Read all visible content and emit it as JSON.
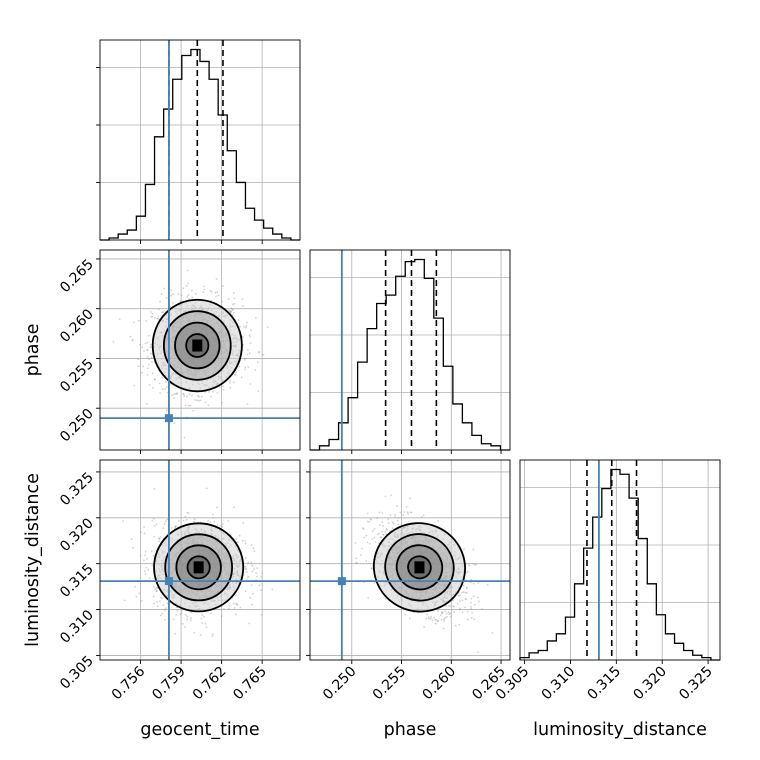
{
  "chart_data": {
    "type": "corner",
    "parameters": [
      {
        "key": "geocent_time",
        "label": "geocent_time",
        "range": [
          0.753,
          0.7678
        ],
        "ticks": [
          "0.756",
          "0.759",
          "0.762",
          "0.765"
        ],
        "tick_values": [
          0.756,
          0.759,
          0.762,
          0.765
        ],
        "truth": 0.7581,
        "quantiles": [
          0.7581,
          0.7602,
          0.7621
        ]
      },
      {
        "key": "phase",
        "label": "phase",
        "range": [
          0.2458,
          0.2659
        ],
        "ticks": [
          "0.250",
          "0.255",
          "0.260",
          "0.265"
        ],
        "tick_values": [
          0.25,
          0.255,
          0.26,
          0.265
        ],
        "truth": 0.249,
        "quantiles": [
          0.2534,
          0.256,
          0.2585
        ]
      },
      {
        "key": "luminosity_distance",
        "label": "luminosity_distance",
        "range": [
          0.3045,
          0.3263
        ],
        "ticks": [
          "0.305",
          "0.310",
          "0.315",
          "0.320",
          "0.325"
        ],
        "tick_values": [
          0.305,
          0.31,
          0.315,
          0.32,
          0.325
        ],
        "truth": 0.3131,
        "quantiles": [
          0.3118,
          0.3145,
          0.3172
        ]
      }
    ],
    "histograms": [
      {
        "parameter": "geocent_time",
        "counts": [
          0,
          1,
          3,
          5,
          12,
          28,
          52,
          66,
          81,
          93,
          96,
          90,
          81,
          63,
          45,
          29,
          16,
          10,
          6,
          3,
          1,
          0
        ]
      },
      {
        "parameter": "phase",
        "counts": [
          0,
          2,
          5,
          13,
          25,
          42,
          58,
          70,
          74,
          83,
          90,
          91,
          82,
          63,
          40,
          22,
          13,
          7,
          3,
          2,
          0
        ]
      },
      {
        "parameter": "luminosity_distance",
        "counts": [
          1,
          3,
          4,
          8,
          11,
          18,
          32,
          47,
          60,
          72,
          80,
          78,
          68,
          51,
          32,
          19,
          11,
          7,
          4,
          2,
          1,
          0
        ]
      }
    ],
    "joint_panels": [
      {
        "x": "geocent_time",
        "y": "phase",
        "center": [
          0.7602,
          0.2563
        ],
        "spread": [
          0.00165,
          0.0023
        ],
        "correlation": 0.0
      },
      {
        "x": "geocent_time",
        "y": "luminosity_distance",
        "center": [
          0.7603,
          0.3146
        ],
        "spread": [
          0.00165,
          0.0024
        ],
        "correlation": 0.0
      },
      {
        "x": "phase",
        "y": "luminosity_distance",
        "center": [
          0.2568,
          0.3146
        ],
        "spread": [
          0.0023,
          0.0024
        ],
        "correlation": -0.45
      }
    ],
    "contour_levels": [
      0.5,
      1.0,
      1.5,
      2.0
    ],
    "title": "",
    "grid": true
  },
  "style": {
    "truth_color": "#4682b4",
    "hist_color": "#000000",
    "sample_color": "#9a9a9a",
    "grid_color": "#b0b0b0",
    "contour_color": "#000000"
  }
}
